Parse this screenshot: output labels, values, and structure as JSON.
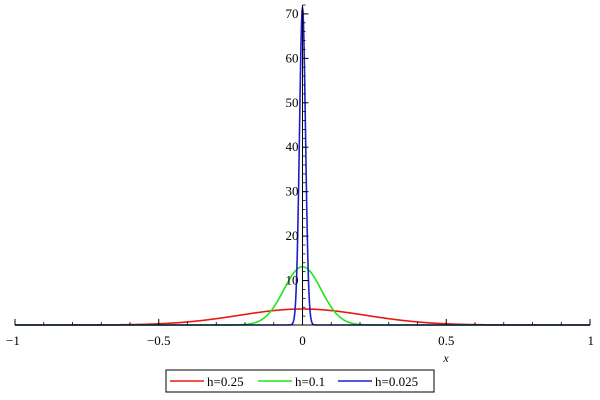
{
  "chart_data": {
    "type": "line",
    "title": "",
    "xlabel": "x",
    "ylabel": "",
    "xlim": [
      -1,
      1
    ],
    "ylim": [
      0,
      72
    ],
    "x_ticks": [
      -1,
      -0.5,
      0,
      0.5,
      1
    ],
    "x_tick_labels": [
      "−1",
      "−0.5",
      "0",
      "0.5",
      "1"
    ],
    "y_ticks": [
      10,
      20,
      30,
      40,
      50,
      60,
      70
    ],
    "y_tick_labels": [
      "10",
      "20",
      "30",
      "40",
      "50",
      "60",
      "70"
    ],
    "grid": false,
    "legend": "bottom-center",
    "series": [
      {
        "name": "h=0.25",
        "color": "#e8190f",
        "peak": 3.6,
        "center": 0,
        "width": 0.22
      },
      {
        "name": "h=0.1",
        "color": "#1ee61e",
        "peak": 13.1,
        "center": 0,
        "width": 0.065
      },
      {
        "name": "h=0.025",
        "color": "#1f1fc8",
        "peak": 71.5,
        "center": 0,
        "width": 0.0105
      }
    ]
  }
}
